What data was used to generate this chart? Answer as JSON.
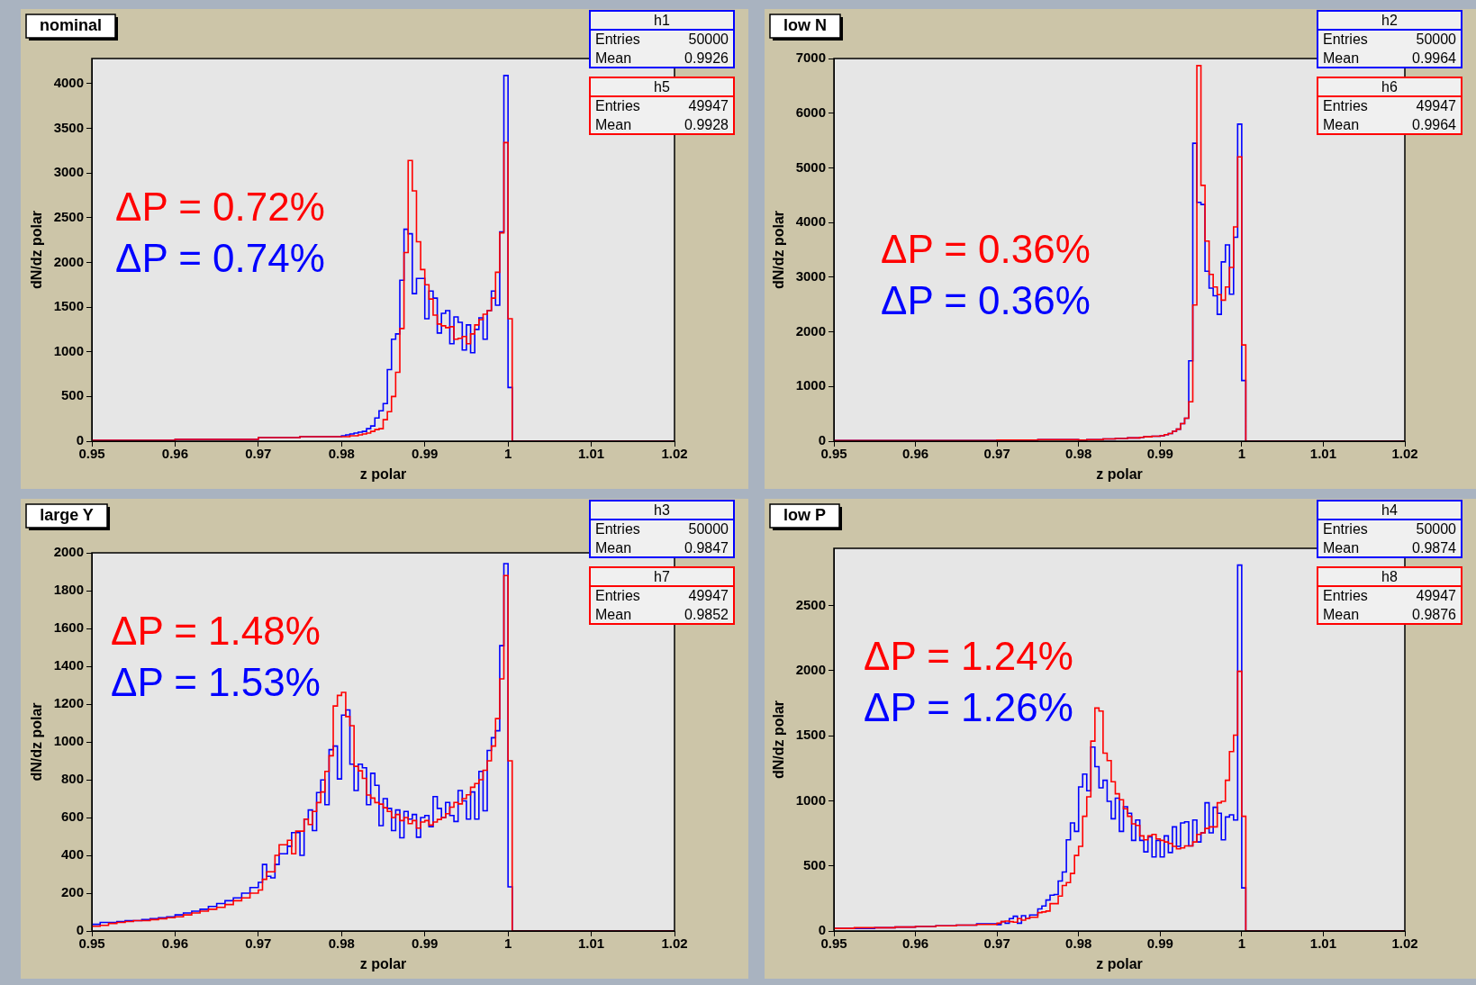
{
  "chart_data": [
    {
      "type": "histogram",
      "title": "nominal",
      "xlabel": "z polar",
      "ylabel": "dN/dz polar",
      "bins": [
        0.95,
        0.96,
        0.97,
        0.975,
        0.98,
        0.9805,
        0.981,
        0.9815,
        0.982,
        0.9825,
        0.983,
        0.9835,
        0.984,
        0.9845,
        0.985,
        0.9855,
        0.986,
        0.9865,
        0.987,
        0.9875,
        0.988,
        0.9885,
        0.989,
        0.9895,
        0.99,
        0.9905,
        0.991,
        0.9915,
        0.992,
        0.9925,
        0.993,
        0.9935,
        0.994,
        0.9945,
        0.995,
        0.9955,
        0.996,
        0.9965,
        0.997,
        0.9975,
        0.998,
        0.9985,
        0.999,
        0.9995,
        1,
        1.0005,
        1.02
      ],
      "series": [
        {
          "name": "ΔP = 0.74%",
          "color": "#0000ff",
          "values": [
            10,
            20,
            40,
            50,
            60,
            70,
            80,
            90,
            100,
            110,
            140,
            170,
            260,
            340,
            420,
            800,
            1140,
            1200,
            1800,
            2370,
            2320,
            1650,
            1820,
            1820,
            1370,
            1680,
            1600,
            1210,
            1430,
            1460,
            1090,
            1390,
            1330,
            1020,
            1300,
            990,
            1250,
            1380,
            1140,
            1460,
            1680,
            1520,
            2340,
            4090,
            600,
            0
          ]
        },
        {
          "name": "ΔP = 0.72%",
          "color": "#ff0000",
          "values": [
            10,
            20,
            40,
            50,
            50,
            50,
            60,
            60,
            70,
            80,
            90,
            110,
            130,
            140,
            240,
            330,
            500,
            770,
            1260,
            2110,
            3140,
            2800,
            2230,
            1920,
            1750,
            1590,
            1410,
            1310,
            1290,
            1270,
            1280,
            1140,
            1150,
            1170,
            1090,
            1200,
            1300,
            1360,
            1420,
            1460,
            1600,
            1890,
            2330,
            3340,
            1370,
            0
          ]
        }
      ],
      "xlim": [
        0.95,
        1.02
      ],
      "xticks": [
        0.95,
        0.96,
        0.97,
        0.98,
        0.99,
        1,
        1.01,
        1.02
      ],
      "ylim": [
        0,
        4280
      ],
      "yticks": [
        0,
        500,
        1000,
        1500,
        2000,
        2500,
        3000,
        3500,
        4000
      ],
      "annotations": [
        "h1\nEntries\t50000\nMean\t0.9926",
        "h5\nEntries\t49947\nMean\t0.9928"
      ]
    },
    {
      "type": "histogram",
      "title": "low N",
      "xlabel": "z polar",
      "ylabel": "dN/dz polar",
      "bins": [
        0.95,
        0.96,
        0.97,
        0.975,
        0.98,
        0.9805,
        0.981,
        0.9815,
        0.982,
        0.9825,
        0.983,
        0.9835,
        0.984,
        0.9845,
        0.985,
        0.9855,
        0.986,
        0.9865,
        0.987,
        0.9875,
        0.988,
        0.9885,
        0.989,
        0.9895,
        0.99,
        0.9905,
        0.991,
        0.9915,
        0.992,
        0.9925,
        0.993,
        0.9935,
        0.994,
        0.9945,
        0.995,
        0.9955,
        0.996,
        0.9965,
        0.997,
        0.9975,
        0.998,
        0.9985,
        0.999,
        0.9995,
        1,
        1.0005,
        1.02
      ],
      "series": [
        {
          "name": "ΔP = 0.36%",
          "color": "#0000ff",
          "values": [
            10,
            10,
            20,
            30,
            20,
            20,
            30,
            30,
            30,
            30,
            40,
            40,
            40,
            50,
            50,
            50,
            60,
            60,
            60,
            70,
            80,
            80,
            90,
            90,
            100,
            120,
            140,
            180,
            220,
            320,
            420,
            1470,
            5450,
            4370,
            4330,
            3110,
            2800,
            2660,
            2320,
            3280,
            3590,
            2690,
            3730,
            5800,
            1110,
            0
          ]
        },
        {
          "name": "ΔP = 0.36%",
          "color": "#ff0000",
          "values": [
            10,
            10,
            20,
            30,
            20,
            20,
            30,
            30,
            30,
            30,
            40,
            40,
            40,
            50,
            50,
            50,
            60,
            60,
            60,
            70,
            80,
            80,
            90,
            90,
            100,
            120,
            140,
            180,
            220,
            320,
            420,
            720,
            2490,
            6870,
            4680,
            3660,
            3050,
            2820,
            2680,
            2580,
            2820,
            3180,
            3920,
            5200,
            1760,
            0
          ]
        }
      ],
      "xlim": [
        0.95,
        1.02
      ],
      "xticks": [
        0.95,
        0.96,
        0.97,
        0.98,
        0.99,
        1,
        1.01,
        1.02
      ],
      "ylim": [
        0,
        7000
      ],
      "yticks": [
        0,
        1000,
        2000,
        3000,
        4000,
        5000,
        6000,
        7000
      ],
      "annotations": [
        "h2\nEntries\t50000\nMean\t0.9964",
        "h6\nEntries\t49947\nMean\t0.9964"
      ]
    },
    {
      "type": "histogram",
      "title": "large Y",
      "xlabel": "z polar",
      "ylabel": "dN/dz polar",
      "bins": [
        0.95,
        0.951,
        0.952,
        0.953,
        0.954,
        0.955,
        0.956,
        0.957,
        0.958,
        0.959,
        0.96,
        0.961,
        0.962,
        0.963,
        0.964,
        0.965,
        0.966,
        0.967,
        0.968,
        0.969,
        0.97,
        0.9705,
        0.971,
        0.9715,
        0.972,
        0.9725,
        0.973,
        0.9735,
        0.974,
        0.9745,
        0.975,
        0.9755,
        0.976,
        0.9765,
        0.977,
        0.9775,
        0.978,
        0.9785,
        0.979,
        0.9795,
        0.98,
        0.9805,
        0.981,
        0.9815,
        0.982,
        0.9825,
        0.983,
        0.9835,
        0.984,
        0.9845,
        0.985,
        0.9855,
        0.986,
        0.9865,
        0.987,
        0.9875,
        0.988,
        0.9885,
        0.989,
        0.9895,
        0.99,
        0.9905,
        0.991,
        0.9915,
        0.992,
        0.9925,
        0.993,
        0.9935,
        0.994,
        0.9945,
        0.995,
        0.9955,
        0.996,
        0.9965,
        0.997,
        0.9975,
        0.998,
        0.9985,
        0.999,
        0.9995,
        1,
        1.0005,
        1.02
      ],
      "series": [
        {
          "name": "ΔP = 1.53%",
          "color": "#0000ff",
          "values": [
            35,
            45,
            45,
            50,
            55,
            55,
            60,
            65,
            70,
            75,
            85,
            95,
            105,
            115,
            130,
            145,
            160,
            175,
            200,
            230,
            257,
            352,
            289,
            281,
            352,
            408,
            408,
            448,
            520,
            520,
            400,
            592,
            640,
            531,
            732,
            799,
            668,
            959,
            978,
            804,
            1142,
            1169,
            882,
            743,
            882,
            863,
            668,
            834,
            770,
            557,
            700,
            648,
            531,
            640,
            493,
            632,
            592,
            616,
            496,
            600,
            611,
            552,
            711,
            648,
            600,
            680,
            611,
            579,
            743,
            688,
            592,
            735,
            592,
            844,
            636,
            955,
            1022,
            1059,
            1509,
            1943,
            233,
            0
          ]
        },
        {
          "name": "ΔP = 1.48%",
          "color": "#ff0000",
          "values": [
            25,
            30,
            40,
            45,
            50,
            55,
            55,
            60,
            65,
            70,
            75,
            85,
            95,
            105,
            115,
            125,
            140,
            160,
            175,
            200,
            217,
            273,
            313,
            313,
            400,
            456,
            456,
            480,
            408,
            528,
            528,
            592,
            563,
            632,
            679,
            735,
            844,
            927,
            1190,
            1246,
            1262,
            1134,
            1086,
            871,
            847,
            807,
            719,
            703,
            679,
            671,
            652,
            632,
            600,
            616,
            584,
            600,
            568,
            584,
            544,
            576,
            584,
            560,
            576,
            590,
            600,
            620,
            655,
            680,
            672,
            700,
            720,
            760,
            780,
            800,
            850,
            900,
            978,
            1123,
            1333,
            1880,
            900,
            0
          ]
        }
      ],
      "xlim": [
        0.95,
        1.02
      ],
      "xticks": [
        0.95,
        0.96,
        0.97,
        0.98,
        0.99,
        1,
        1.01,
        1.02
      ],
      "ylim": [
        0,
        2000
      ],
      "yticks": [
        0,
        200,
        400,
        600,
        800,
        1000,
        1200,
        1400,
        1600,
        1800,
        2000
      ],
      "annotations": [
        "h3\nEntries\t50000\nMean\t0.9847",
        "h7\nEntries\t49947\nMean\t0.9852"
      ]
    },
    {
      "type": "histogram",
      "title": "low P",
      "xlabel": "z polar",
      "ylabel": "dN/dz polar",
      "bins": [
        0.95,
        0.9525,
        0.955,
        0.9575,
        0.96,
        0.9625,
        0.965,
        0.9675,
        0.97,
        0.9705,
        0.971,
        0.9715,
        0.972,
        0.9725,
        0.973,
        0.9735,
        0.974,
        0.9745,
        0.975,
        0.9755,
        0.976,
        0.9765,
        0.977,
        0.9775,
        0.978,
        0.9785,
        0.979,
        0.9795,
        0.98,
        0.9805,
        0.981,
        0.9815,
        0.982,
        0.9825,
        0.983,
        0.9835,
        0.984,
        0.9845,
        0.985,
        0.9855,
        0.986,
        0.9865,
        0.987,
        0.9875,
        0.988,
        0.9885,
        0.989,
        0.9895,
        0.99,
        0.9905,
        0.991,
        0.9915,
        0.992,
        0.9925,
        0.993,
        0.9935,
        0.994,
        0.9945,
        0.995,
        0.9955,
        0.996,
        0.9965,
        0.997,
        0.9975,
        0.998,
        0.9985,
        0.999,
        0.9995,
        1,
        1.0005,
        1.02
      ],
      "series": [
        {
          "name": "ΔP = 1.26%",
          "color": "#0000ff",
          "values": [
            20,
            20,
            25,
            30,
            35,
            40,
            45,
            55,
            49,
            72,
            60,
            95,
            113,
            60,
            118,
            95,
            123,
            123,
            169,
            192,
            238,
            275,
            280,
            384,
            453,
            700,
            830,
            765,
            1107,
            1205,
            1077,
            1413,
            1262,
            1100,
            1158,
            996,
            862,
            1020,
            765,
            955,
            904,
            696,
            853,
            696,
            608,
            724,
            569,
            696,
            569,
            731,
            603,
            800,
            650,
            830,
            839,
            654,
            853,
            684,
            754,
            985,
            754,
            950,
            904,
            700,
            876,
            892,
            853,
            2811,
            331,
            0
          ]
        },
        {
          "name": "ΔP = 1.24%",
          "color": "#ff0000",
          "values": [
            20,
            25,
            25,
            30,
            35,
            40,
            45,
            50,
            60,
            72,
            76,
            72,
            67,
            95,
            83,
            95,
            106,
            106,
            141,
            146,
            153,
            210,
            210,
            268,
            349,
            372,
            442,
            580,
            650,
            881,
            1031,
            1459,
            1713,
            1690,
            1366,
            1309,
            1147,
            1054,
            1008,
            939,
            881,
            823,
            811,
            731,
            700,
            731,
            742,
            707,
            696,
            684,
            673,
            650,
            631,
            638,
            654,
            654,
            684,
            742,
            754,
            788,
            800,
            800,
            985,
            996,
            1158,
            1378,
            1505,
            1995,
            881,
            0
          ]
        }
      ],
      "xlim": [
        0.95,
        1.02
      ],
      "xticks": [
        0.95,
        0.96,
        0.97,
        0.98,
        0.99,
        1,
        1.01,
        1.02
      ],
      "ylim": [
        0,
        2940
      ],
      "yticks": [
        0,
        500,
        1000,
        1500,
        2000,
        2500
      ],
      "annotations": [
        "h4\nEntries\t50000\nMean\t0.9874",
        "h8\nEntries\t49947\nMean\t0.9876"
      ]
    }
  ]
}
